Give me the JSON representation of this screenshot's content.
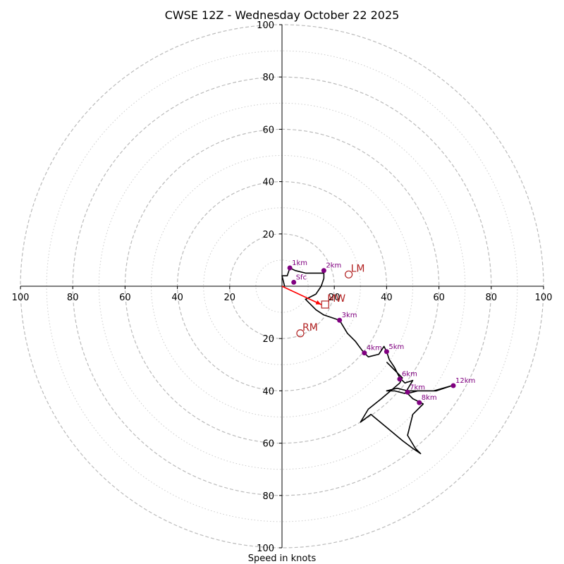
{
  "chart_data": {
    "type": "hodograph",
    "title": "CWSE 12Z - Wednesday October 22 2025",
    "xlabel": "Speed in knots",
    "units": "knots",
    "range": [
      -100,
      100
    ],
    "rings_major": [
      20,
      40,
      60,
      80,
      100
    ],
    "rings_minor": [
      10,
      30,
      50,
      70,
      90
    ],
    "x_tick_labels": [
      "100",
      "80",
      "60",
      "40",
      "20",
      "20",
      "40",
      "60",
      "80",
      "100"
    ],
    "y_tick_labels": [
      "100",
      "80",
      "60",
      "40",
      "20",
      "20",
      "40",
      "60",
      "80",
      "100"
    ],
    "grid": true,
    "colors": {
      "trace": "#000000",
      "height_markers": "#800080",
      "storm_motion": "#b22222",
      "shear_vector": "#ff0000",
      "ring_major": "#bbbbbb",
      "ring_minor": "#cccccc"
    },
    "trace": [
      [
        1,
        0
      ],
      [
        0,
        4
      ],
      [
        2,
        4
      ],
      [
        3,
        7
      ],
      [
        5,
        6
      ],
      [
        9,
        5
      ],
      [
        16,
        5
      ],
      [
        16,
        3
      ],
      [
        15,
        0
      ],
      [
        13,
        -3
      ],
      [
        9,
        -5
      ],
      [
        10,
        -6
      ],
      [
        13,
        -9
      ],
      [
        16,
        -11
      ],
      [
        22,
        -13
      ],
      [
        25,
        -18
      ],
      [
        28,
        -21
      ],
      [
        31,
        -25
      ],
      [
        33,
        -27
      ],
      [
        37,
        -26
      ],
      [
        39,
        -23
      ],
      [
        40,
        -25
      ],
      [
        41,
        -28
      ],
      [
        43,
        -31
      ],
      [
        45,
        -35
      ],
      [
        47,
        -37
      ],
      [
        50,
        -36
      ],
      [
        47,
        -41
      ],
      [
        43,
        -40
      ],
      [
        40,
        -40
      ],
      [
        44,
        -39
      ],
      [
        48,
        -40
      ],
      [
        52,
        -40
      ],
      [
        59,
        -40
      ],
      [
        65,
        -38
      ],
      [
        58,
        -40
      ],
      [
        52,
        -40
      ],
      [
        48,
        -41
      ],
      [
        50,
        -43
      ],
      [
        52,
        -44
      ],
      [
        54,
        -45
      ],
      [
        50,
        -49
      ],
      [
        48,
        -57
      ],
      [
        51,
        -62
      ],
      [
        53,
        -64
      ],
      [
        50,
        -62
      ],
      [
        46,
        -59
      ],
      [
        40,
        -54
      ],
      [
        34,
        -49
      ],
      [
        30,
        -52
      ],
      [
        33,
        -47
      ],
      [
        38,
        -43
      ],
      [
        45,
        -37
      ],
      [
        46,
        -35
      ],
      [
        44,
        -33
      ],
      [
        42,
        -31
      ],
      [
        40,
        -29
      ]
    ],
    "height_markers": [
      {
        "label": "Sfc",
        "u": 4.5,
        "v": 1.5
      },
      {
        "label": "1km",
        "u": 3,
        "v": 7
      },
      {
        "label": "2km",
        "u": 16,
        "v": 6
      },
      {
        "label": "3km",
        "u": 22,
        "v": -13
      },
      {
        "label": "4km",
        "u": 31.5,
        "v": -25.5
      },
      {
        "label": "5km",
        "u": 40,
        "v": -25
      },
      {
        "label": "6km",
        "u": 45,
        "v": -35.5
      },
      {
        "label": "7km",
        "u": 48,
        "v": -40.5
      },
      {
        "label": "8km",
        "u": 52.5,
        "v": -44.5
      },
      {
        "label": "12km",
        "u": 65.5,
        "v": -38
      }
    ],
    "storm_motions": [
      {
        "label": "LM",
        "u": 25.5,
        "v": 4.5,
        "marker": "circle"
      },
      {
        "label": "RM",
        "u": 7,
        "v": -18,
        "marker": "circle"
      },
      {
        "label": "MW",
        "u": 16.5,
        "v": -7,
        "marker": "square"
      }
    ],
    "shear_vector": {
      "from": [
        0,
        0
      ],
      "to": [
        15,
        -7
      ]
    }
  }
}
